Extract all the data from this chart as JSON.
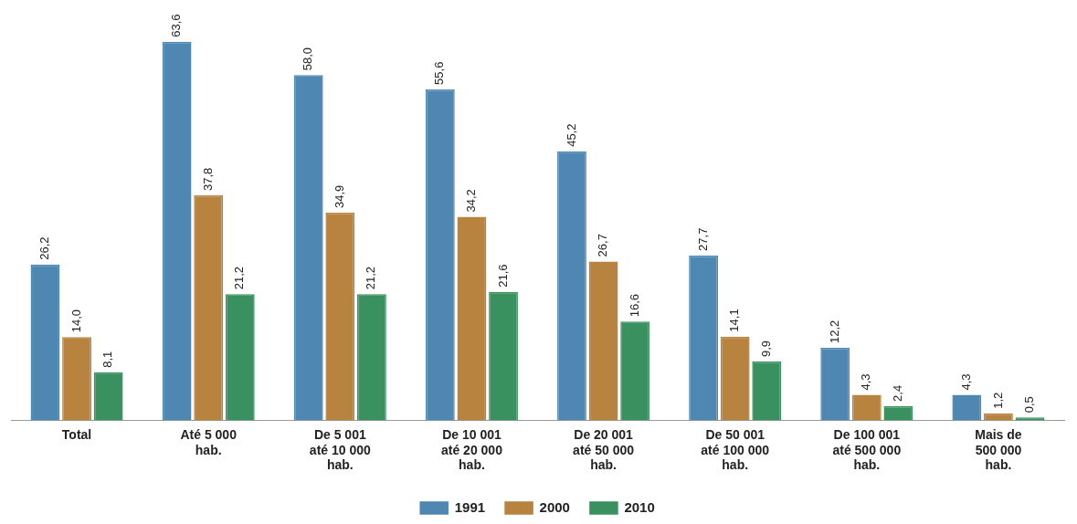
{
  "chart_data": {
    "type": "bar",
    "categories": [
      "Total",
      "Até 5 000 hab.",
      "De 5 001 até 10 000 hab.",
      "De 10 001 até 20 000 hab.",
      "De 20 001 até 50 000 hab.",
      "De 50 001 até 100 000 hab.",
      "De 100 001 até 500 000 hab.",
      "Mais de 500 000 hab."
    ],
    "series": [
      {
        "name": "1991",
        "color": "#4f87b3",
        "values": [
          26.2,
          63.6,
          58.0,
          55.6,
          45.2,
          27.7,
          12.2,
          4.3
        ],
        "value_labels": [
          "26,2",
          "63,6",
          "58,0",
          "55,6",
          "45,2",
          "27,7",
          "12,2",
          "4,3"
        ]
      },
      {
        "name": "2000",
        "color": "#b8823f",
        "values": [
          14.0,
          37.8,
          34.9,
          34.2,
          26.7,
          14.1,
          4.3,
          1.2
        ],
        "value_labels": [
          "14,0",
          "37,8",
          "34,9",
          "34,2",
          "26,7",
          "14,1",
          "4,3",
          "1,2"
        ]
      },
      {
        "name": "2010",
        "color": "#3a9160",
        "values": [
          8.1,
          21.2,
          21.2,
          21.6,
          16.6,
          9.9,
          2.4,
          0.5
        ],
        "value_labels": [
          "8,1",
          "21,2",
          "21,2",
          "21,6",
          "16,6",
          "9,9",
          "2,4",
          "0,5"
        ]
      }
    ],
    "legend": "bottom",
    "grid": false
  }
}
